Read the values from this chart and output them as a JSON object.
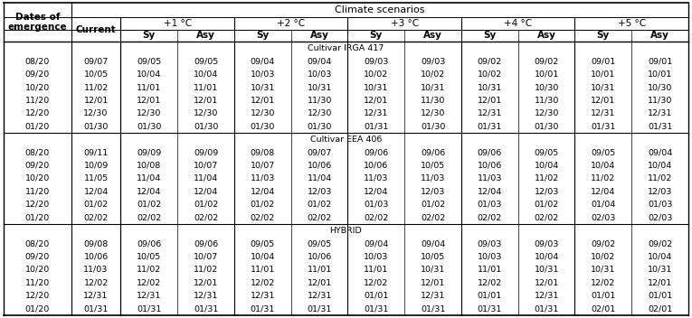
{
  "title": "Climate scenarios",
  "sections": [
    {
      "label": "Cultivar IRGA 417",
      "rows": [
        [
          "08/20",
          "09/07",
          "09/05",
          "09/05",
          "09/04",
          "09/04",
          "09/03",
          "09/03",
          "09/02",
          "09/02",
          "09/01",
          "09/01"
        ],
        [
          "09/20",
          "10/05",
          "10/04",
          "10/04",
          "10/03",
          "10/03",
          "10/02",
          "10/02",
          "10/02",
          "10/01",
          "10/01",
          "10/01"
        ],
        [
          "10/20",
          "11/02",
          "11/01",
          "11/01",
          "10/31",
          "10/31",
          "10/31",
          "10/31",
          "10/31",
          "10/30",
          "10/31",
          "10/30"
        ],
        [
          "11/20",
          "12/01",
          "12/01",
          "12/01",
          "12/01",
          "11/30",
          "12/01",
          "11/30",
          "12/01",
          "11/30",
          "12/01",
          "11/30"
        ],
        [
          "12/20",
          "12/30",
          "12/30",
          "12/30",
          "12/30",
          "12/30",
          "12/31",
          "12/30",
          "12/31",
          "12/30",
          "12/31",
          "12/31"
        ],
        [
          "01/20",
          "01/30",
          "01/30",
          "01/30",
          "01/30",
          "01/30",
          "01/31",
          "01/30",
          "01/31",
          "01/30",
          "01/31",
          "01/31"
        ]
      ]
    },
    {
      "label": "Cultivar EEA 406",
      "rows": [
        [
          "08/20",
          "09/11",
          "09/09",
          "09/09",
          "09/08",
          "09/07",
          "09/06",
          "09/06",
          "09/06",
          "09/05",
          "09/05",
          "09/04"
        ],
        [
          "09/20",
          "10/09",
          "10/08",
          "10/07",
          "10/07",
          "10/06",
          "10/06",
          "10/05",
          "10/06",
          "10/04",
          "10/04",
          "10/04"
        ],
        [
          "10/20",
          "11/05",
          "11/04",
          "11/04",
          "11/03",
          "11/04",
          "11/03",
          "11/03",
          "11/03",
          "11/02",
          "11/02",
          "11/02"
        ],
        [
          "11/20",
          "12/04",
          "12/04",
          "12/04",
          "12/04",
          "12/03",
          "12/04",
          "12/03",
          "12/04",
          "12/03",
          "12/04",
          "12/03"
        ],
        [
          "12/20",
          "01/02",
          "01/02",
          "01/02",
          "01/02",
          "01/02",
          "01/03",
          "01/02",
          "01/03",
          "01/02",
          "01/04",
          "01/03"
        ],
        [
          "01/20",
          "02/02",
          "02/02",
          "02/02",
          "02/02",
          "02/02",
          "02/02",
          "02/02",
          "02/02",
          "02/02",
          "02/03",
          "02/03"
        ]
      ]
    },
    {
      "label": "HYBRID",
      "rows": [
        [
          "08/20",
          "09/08",
          "09/06",
          "09/06",
          "09/05",
          "09/05",
          "09/04",
          "09/04",
          "09/03",
          "09/03",
          "09/02",
          "09/02"
        ],
        [
          "09/20",
          "10/06",
          "10/05",
          "10/07",
          "10/04",
          "10/06",
          "10/03",
          "10/05",
          "10/03",
          "10/04",
          "10/02",
          "10/04"
        ],
        [
          "10/20",
          "11/03",
          "11/02",
          "11/02",
          "11/01",
          "11/01",
          "11/01",
          "10/31",
          "11/01",
          "10/31",
          "10/31",
          "10/31"
        ],
        [
          "11/20",
          "12/02",
          "12/02",
          "12/01",
          "12/02",
          "12/01",
          "12/02",
          "12/01",
          "12/02",
          "12/01",
          "12/02",
          "12/01"
        ],
        [
          "12/20",
          "12/31",
          "12/31",
          "12/31",
          "12/31",
          "12/31",
          "01/01",
          "12/31",
          "01/01",
          "12/31",
          "01/01",
          "01/01"
        ],
        [
          "01/20",
          "01/31",
          "01/31",
          "01/31",
          "01/31",
          "01/31",
          "01/31",
          "01/31",
          "01/31",
          "01/31",
          "02/01",
          "02/01"
        ]
      ]
    }
  ],
  "temp_labels": [
    "+1 °C",
    "+2 °C",
    "+3 °C",
    "+4 °C",
    "+5 °C"
  ],
  "bg_color": "#ffffff",
  "text_color": "#000000",
  "line_color": "#000000",
  "font_size": 6.8,
  "title_font_size": 8.0,
  "header_font_size": 7.5
}
